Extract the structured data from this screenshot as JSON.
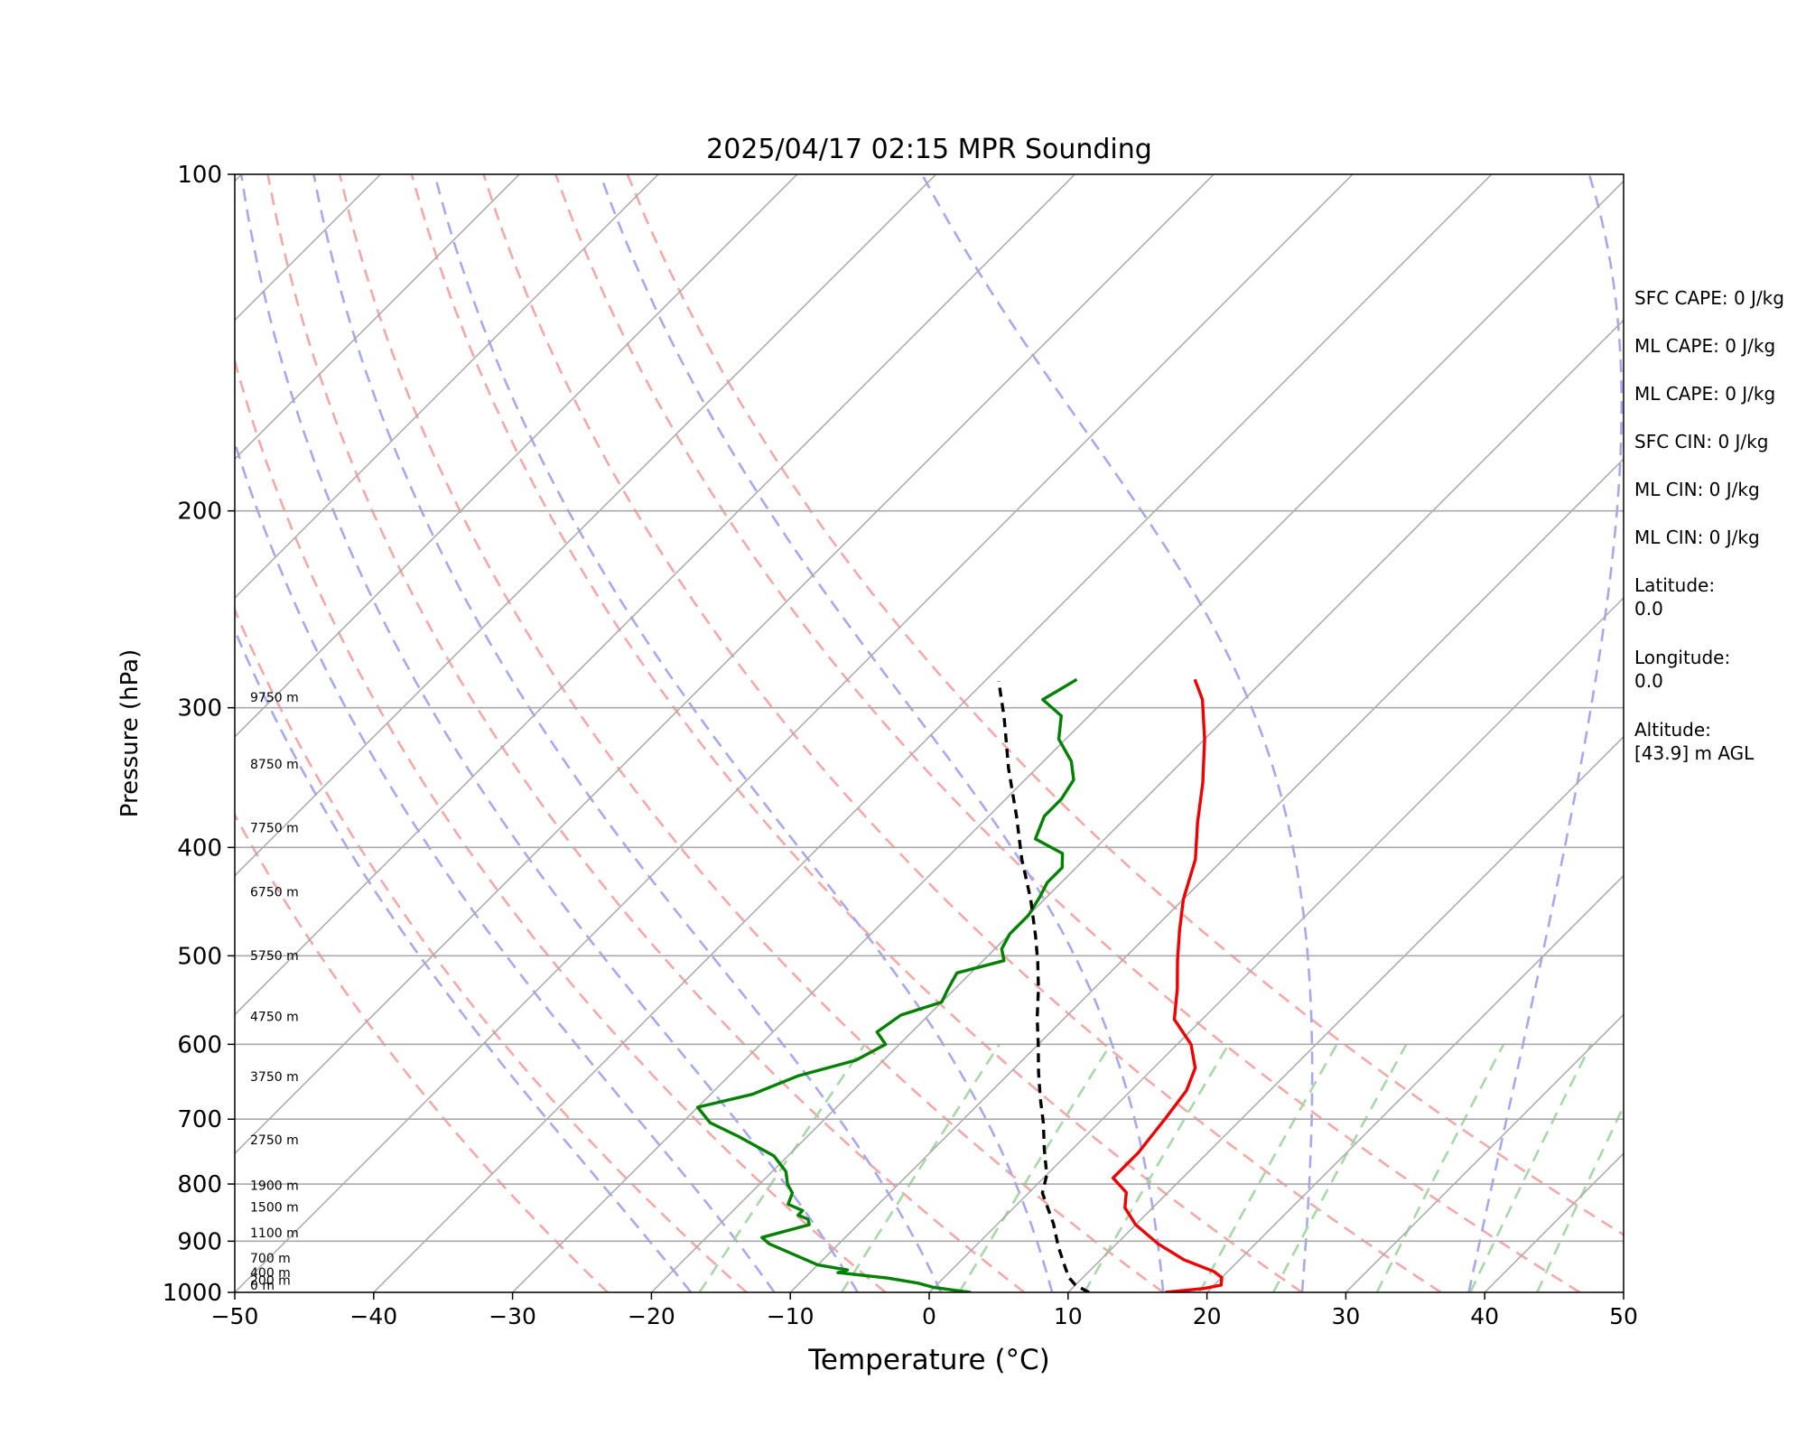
{
  "chart_data": {
    "type": "line",
    "title": "2025/04/17 02:15 MPR Sounding",
    "xlabel": "Temperature (°C)",
    "ylabel": "Pressure (hPa)",
    "xlim": [
      -50,
      50
    ],
    "ylim": [
      1000,
      100
    ],
    "y_scale": "log",
    "x_ticks": [
      "−50",
      "−40",
      "−30",
      "−20",
      "−10",
      "0",
      "10",
      "20",
      "30",
      "40",
      "50"
    ],
    "x_tick_values": [
      -50,
      -40,
      -30,
      -20,
      -10,
      0,
      10,
      20,
      30,
      40,
      50
    ],
    "y_ticks": [
      "100",
      "200",
      "300",
      "400",
      "500",
      "600",
      "700",
      "800",
      "900",
      "1000"
    ],
    "y_tick_values": [
      100,
      200,
      300,
      400,
      500,
      600,
      700,
      800,
      900,
      1000
    ],
    "grid": true,
    "height_labels": [
      {
        "label": "0 m",
        "p": 1000
      },
      {
        "label": "200 m",
        "p": 990
      },
      {
        "label": "400 m",
        "p": 974
      },
      {
        "label": "700 m",
        "p": 946
      },
      {
        "label": "1100 m",
        "p": 898
      },
      {
        "label": "1500 m",
        "p": 851
      },
      {
        "label": "1900 m",
        "p": 814
      },
      {
        "label": "2750 m",
        "p": 741
      },
      {
        "label": "3750 m",
        "p": 651
      },
      {
        "label": "4750 m",
        "p": 575
      },
      {
        "label": "5750 m",
        "p": 507
      },
      {
        "label": "6750 m",
        "p": 445
      },
      {
        "label": "7750 m",
        "p": 390
      },
      {
        "label": "8750 m",
        "p": 342
      },
      {
        "label": "9750 m",
        "p": 298
      }
    ],
    "series": [
      {
        "role": "temperature",
        "color": "#ee0000",
        "points": [
          [
            17.0,
            1000
          ],
          [
            19.5,
            992
          ],
          [
            20.5,
            985
          ],
          [
            20.0,
            970
          ],
          [
            19.0,
            958
          ],
          [
            16.0,
            935
          ],
          [
            13.0,
            905
          ],
          [
            10.0,
            870
          ],
          [
            8.0,
            840
          ],
          [
            7.0,
            814
          ],
          [
            5.0,
            790
          ],
          [
            5.0,
            750
          ],
          [
            4.5,
            700
          ],
          [
            4.0,
            660
          ],
          [
            3.0,
            630
          ],
          [
            1.0,
            600
          ],
          [
            -2.0,
            570
          ],
          [
            -4.0,
            535
          ],
          [
            -6.0,
            505
          ],
          [
            -8.0,
            475
          ],
          [
            -10.0,
            445
          ],
          [
            -12.0,
            410
          ],
          [
            -14.5,
            380
          ],
          [
            -17.0,
            350
          ],
          [
            -20.0,
            320
          ],
          [
            -23.0,
            295
          ],
          [
            -25.0,
            283
          ]
        ]
      },
      {
        "role": "dewpoint",
        "color": "#008000",
        "points": [
          [
            3.0,
            1000
          ],
          [
            0.0,
            990
          ],
          [
            -1.5,
            981
          ],
          [
            -4.0,
            971
          ],
          [
            -8.0,
            960
          ],
          [
            -7.5,
            955
          ],
          [
            -10.0,
            945
          ],
          [
            -15.0,
            905
          ],
          [
            -16.0,
            893
          ],
          [
            -13.5,
            870
          ],
          [
            -14.0,
            860
          ],
          [
            -15.0,
            853
          ],
          [
            -15.0,
            845
          ],
          [
            -16.5,
            834
          ],
          [
            -17.0,
            815
          ],
          [
            -18.0,
            800
          ],
          [
            -19.0,
            780
          ],
          [
            -21.0,
            755
          ],
          [
            -25.0,
            725
          ],
          [
            -28.0,
            705
          ],
          [
            -30.0,
            683
          ],
          [
            -27.0,
            665
          ],
          [
            -25.0,
            640
          ],
          [
            -22.0,
            620
          ],
          [
            -21.0,
            600
          ],
          [
            -22.5,
            585
          ],
          [
            -22.0,
            565
          ],
          [
            -20.0,
            550
          ],
          [
            -20.5,
            535
          ],
          [
            -21.0,
            518
          ],
          [
            -18.5,
            505
          ],
          [
            -19.5,
            493
          ],
          [
            -20.0,
            478
          ],
          [
            -20.0,
            460
          ],
          [
            -20.5,
            443
          ],
          [
            -21.0,
            430
          ],
          [
            -21.0,
            417
          ],
          [
            -22.0,
            405
          ],
          [
            -25.0,
            393
          ],
          [
            -26.0,
            375
          ],
          [
            -26.0,
            362
          ],
          [
            -26.5,
            348
          ],
          [
            -28.0,
            335
          ],
          [
            -30.5,
            320
          ],
          [
            -32.0,
            305
          ],
          [
            -34.5,
            295
          ],
          [
            -34.0,
            289
          ],
          [
            -33.5,
            283
          ]
        ]
      },
      {
        "role": "parcel",
        "color": "#000000",
        "dashed": true,
        "points": [
          [
            11.5,
            1000
          ],
          [
            10.0,
            985
          ],
          [
            9.0,
            970
          ],
          [
            8.0,
            950
          ],
          [
            6.0,
            910
          ],
          [
            4.0,
            868
          ],
          [
            1.0,
            815
          ],
          [
            0.0,
            785
          ],
          [
            -2.0,
            745
          ],
          [
            -4.0,
            705
          ],
          [
            -6.0,
            670
          ],
          [
            -8.0,
            635
          ],
          [
            -10.0,
            600
          ],
          [
            -12.0,
            568
          ],
          [
            -14.0,
            535
          ],
          [
            -16.0,
            506
          ],
          [
            -18.0,
            480
          ],
          [
            -21.0,
            445
          ],
          [
            -24.5,
            410
          ],
          [
            -28.0,
            375
          ],
          [
            -32.0,
            340
          ],
          [
            -36.0,
            306
          ],
          [
            -39.0,
            284
          ]
        ]
      }
    ],
    "reference_lines": {
      "isotherms_color": "#aaaaaa",
      "dry_adiabats_color": "#f4a8a8",
      "moist_adiabats_color": "#a8a8f0",
      "mixing_ratio_color": "#a8d8a8",
      "dry_adiabat_thetas": [
        330,
        320,
        310,
        300,
        290,
        280,
        270,
        260,
        250
      ],
      "moist_adiabat_thetas": [
        256,
        262,
        268,
        274,
        282,
        290,
        300,
        312
      ],
      "mixing_ratio_top_temps": [
        -22.5,
        -12.8,
        -4.8,
        3.7,
        11.5,
        16.5,
        23.5,
        29.8,
        34.3
      ]
    }
  },
  "info": [
    {
      "label": "SFC CAPE: 0 J/kg"
    },
    {
      "label": "ML CAPE: 0 J/kg"
    },
    {
      "label": "ML CAPE: 0 J/kg"
    },
    {
      "label": "SFC CIN: 0 J/kg"
    },
    {
      "label": "ML CIN: 0 J/kg"
    },
    {
      "label": "ML CIN: 0 J/kg"
    },
    {
      "label": "Latitude:\n0.0"
    },
    {
      "label": "Longitude:\n0.0"
    },
    {
      "label": "Altitude:\n[43.9] m AGL"
    }
  ]
}
